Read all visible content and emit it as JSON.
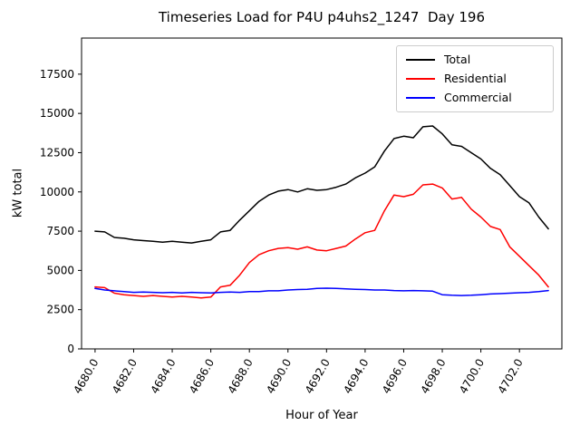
{
  "figure": {
    "title": "Timeseries Load for P4U p4uhs2_1247  Day 196",
    "xlabel": "Hour of Year",
    "ylabel": "kW total"
  },
  "chart_data": {
    "type": "line",
    "title": "Timeseries Load for P4U p4uhs2_1247  Day 196",
    "xlabel": "Hour of Year",
    "ylabel": "kW total",
    "grid": false,
    "legend_position": "upper right",
    "xlim": [
      4679.3,
      4704.2
    ],
    "ylim": [
      0,
      19800
    ],
    "x_ticks": [
      4680,
      4682,
      4684,
      4686,
      4688,
      4690,
      4692,
      4694,
      4696,
      4698,
      4700,
      4702
    ],
    "x_tick_labels": [
      "4680.0",
      "4682.0",
      "4684.0",
      "4686.0",
      "4688.0",
      "4690.0",
      "4692.0",
      "4694.0",
      "4696.0",
      "4698.0",
      "4700.0",
      "4702.0"
    ],
    "y_ticks": [
      0,
      2500,
      5000,
      7500,
      10000,
      12500,
      15000,
      17500
    ],
    "y_tick_labels": [
      "0",
      "2500",
      "5000",
      "7500",
      "10000",
      "12500",
      "15000",
      "17500"
    ],
    "x": [
      4680.0,
      4680.5,
      4681.0,
      4681.5,
      4682.0,
      4682.5,
      4683.0,
      4683.5,
      4684.0,
      4684.5,
      4685.0,
      4685.5,
      4686.0,
      4686.5,
      4687.0,
      4687.5,
      4688.0,
      4688.5,
      4689.0,
      4689.5,
      4690.0,
      4690.5,
      4691.0,
      4691.5,
      4692.0,
      4692.5,
      4693.0,
      4693.5,
      4694.0,
      4694.5,
      4695.0,
      4695.5,
      4696.0,
      4696.5,
      4697.0,
      4697.5,
      4698.0,
      4698.5,
      4699.0,
      4699.5,
      4700.0,
      4700.5,
      4701.0,
      4701.5,
      4702.0,
      4702.5,
      4703.0,
      4703.5
    ],
    "series": [
      {
        "name": "Total",
        "color": "#000000",
        "values": [
          7500,
          7450,
          7100,
          7050,
          6950,
          6900,
          6850,
          6800,
          6850,
          6800,
          6750,
          6850,
          6950,
          7450,
          7550,
          8200,
          8800,
          9400,
          9800,
          10050,
          10150,
          10000,
          10200,
          10100,
          10150,
          10300,
          10500,
          10900,
          11200,
          11600,
          12600,
          13400,
          13550,
          13450,
          14150,
          14200,
          13700,
          13000,
          12900,
          12500,
          12100,
          11500,
          11100,
          10400,
          9700,
          9300,
          8400,
          7650
        ]
      },
      {
        "name": "Residential",
        "color": "#ff0000",
        "values": [
          3950,
          3900,
          3550,
          3450,
          3400,
          3350,
          3400,
          3350,
          3300,
          3350,
          3300,
          3250,
          3300,
          3950,
          4050,
          4700,
          5500,
          6000,
          6250,
          6400,
          6450,
          6350,
          6500,
          6300,
          6250,
          6400,
          6550,
          7000,
          7400,
          7550,
          8800,
          9800,
          9700,
          9850,
          10450,
          10500,
          10250,
          9550,
          9650,
          8900,
          8400,
          7800,
          7600,
          6500,
          5900,
          5300,
          4700,
          3950
        ]
      },
      {
        "name": "Commercial",
        "color": "#0000ff",
        "values": [
          3850,
          3750,
          3700,
          3650,
          3600,
          3620,
          3600,
          3580,
          3600,
          3560,
          3600,
          3580,
          3560,
          3600,
          3620,
          3600,
          3650,
          3650,
          3700,
          3700,
          3750,
          3780,
          3800,
          3850,
          3870,
          3850,
          3820,
          3800,
          3780,
          3750,
          3750,
          3720,
          3700,
          3720,
          3700,
          3680,
          3450,
          3420,
          3400,
          3420,
          3450,
          3500,
          3520,
          3550,
          3580,
          3600,
          3650,
          3720
        ]
      }
    ]
  }
}
